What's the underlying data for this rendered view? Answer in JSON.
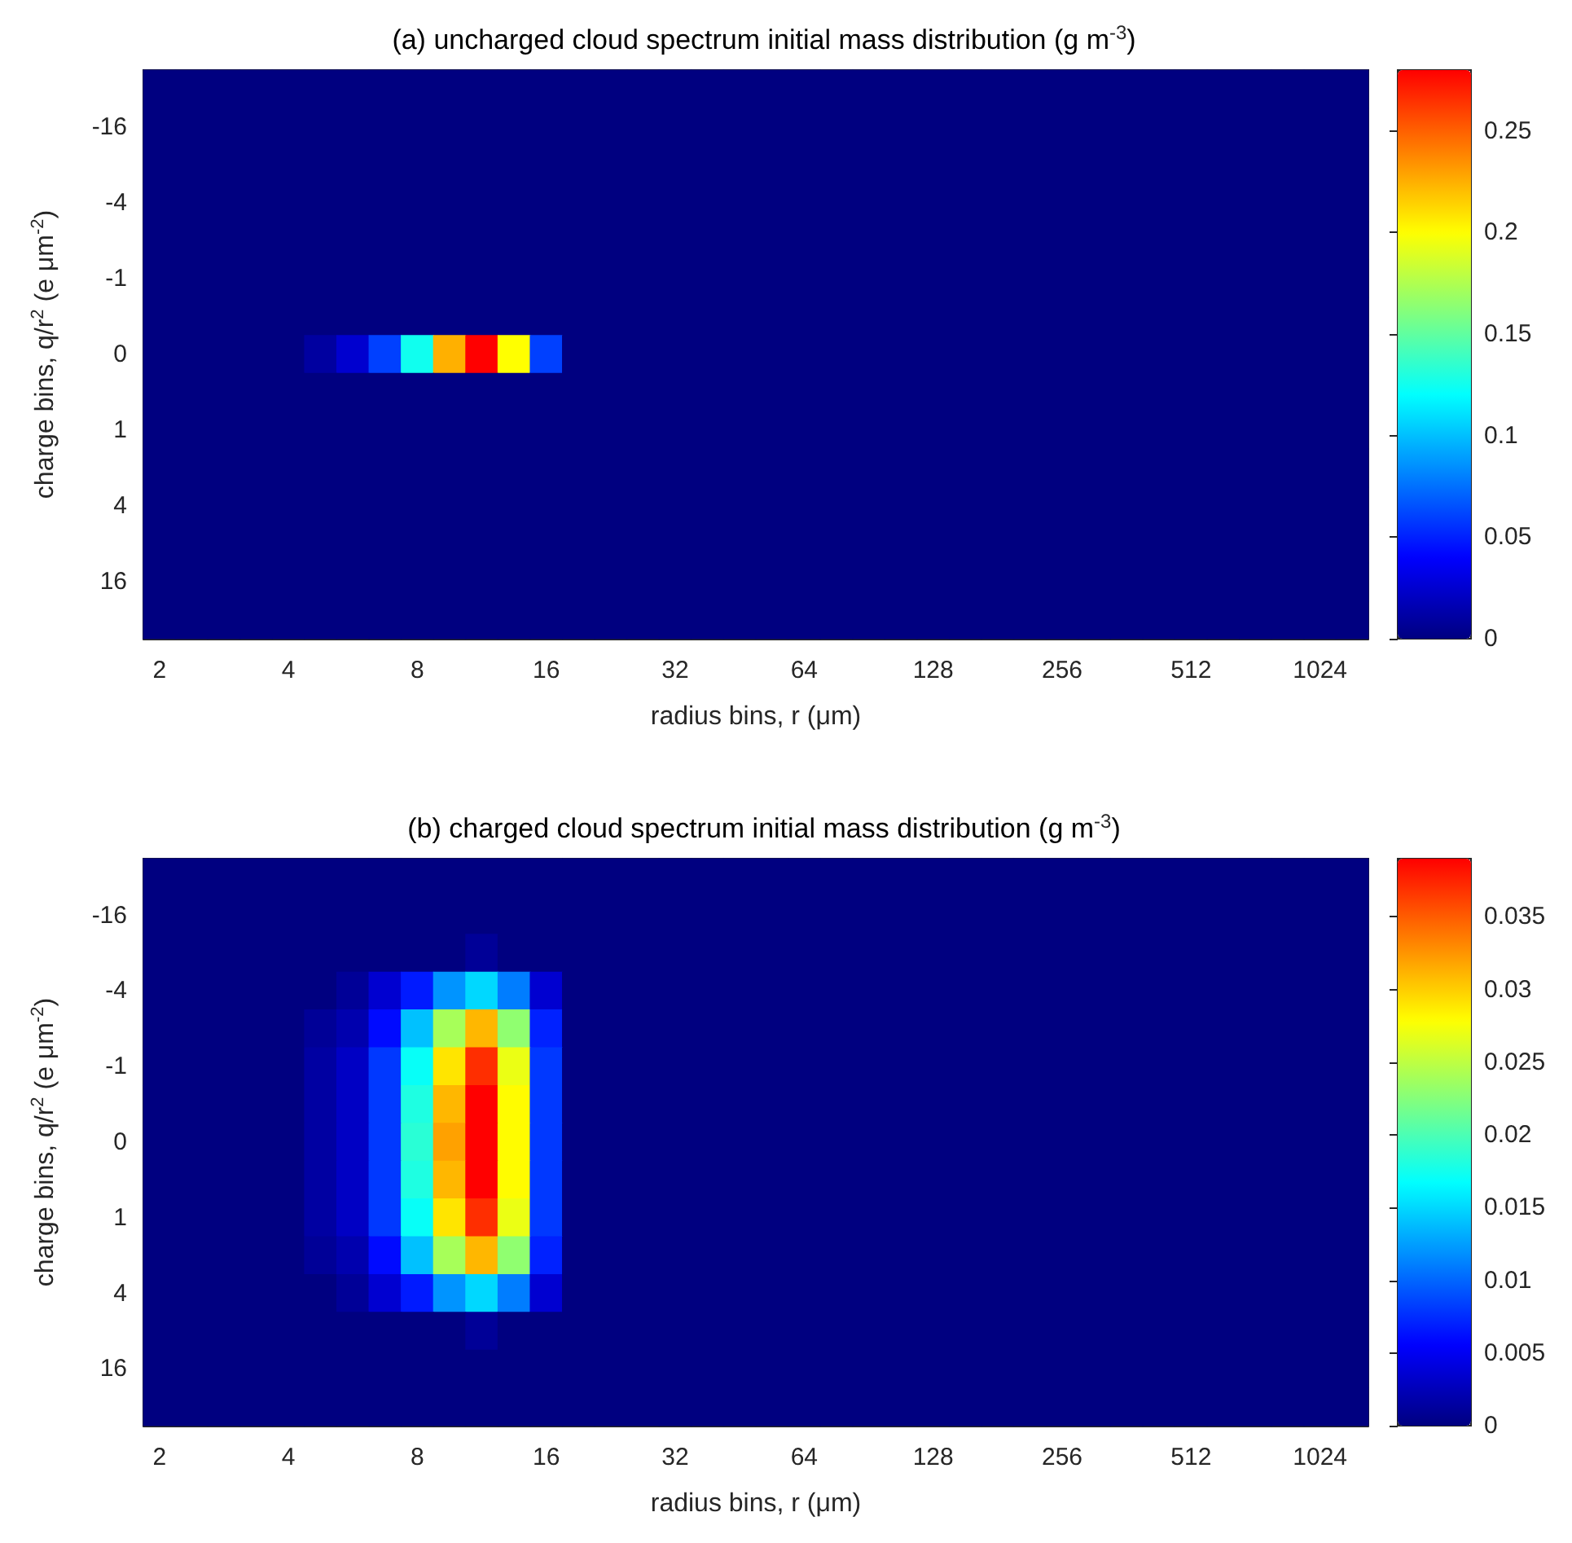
{
  "chart_data": [
    {
      "type": "heatmap",
      "title": "(a) uncharged cloud spectrum initial mass distribution (g m$^{-3}$)",
      "xlabel": "radius bins, r (μm)",
      "ylabel": "charge bins, q/r$^{2}$ (e μm$^{-2}$)",
      "categories": [
        "2",
        null,
        null,
        null,
        "4",
        null,
        null,
        null,
        "8",
        null,
        null,
        null,
        "16",
        null,
        null,
        null,
        "32",
        null,
        null,
        null,
        "64",
        null,
        null,
        null,
        "128",
        null,
        null,
        null,
        "256",
        null,
        null,
        null,
        "512",
        null,
        null,
        null,
        "1024",
        null
      ],
      "y_categories": [
        null,
        "-16",
        null,
        "-4",
        null,
        "-1",
        null,
        "0",
        null,
        "1",
        null,
        "4",
        null,
        "16",
        null
      ],
      "cells": [
        [
          0,
          0,
          0,
          0,
          0,
          0,
          0,
          0,
          0,
          0,
          0,
          0,
          0,
          0,
          0,
          0,
          0,
          0,
          0,
          0,
          0,
          0,
          0,
          0,
          0,
          0,
          0,
          0,
          0,
          0,
          0,
          0,
          0,
          0,
          0,
          0,
          0,
          0
        ],
        [
          0,
          0,
          0,
          0,
          0,
          0,
          0,
          0,
          0,
          0,
          0,
          0,
          0,
          0,
          0,
          0,
          0,
          0,
          0,
          0,
          0,
          0,
          0,
          0,
          0,
          0,
          0,
          0,
          0,
          0,
          0,
          0,
          0,
          0,
          0,
          0,
          0,
          0
        ],
        [
          0,
          0,
          0,
          0,
          0,
          0,
          0,
          0,
          0,
          0,
          0,
          0,
          0,
          0,
          0,
          0,
          0,
          0,
          0,
          0,
          0,
          0,
          0,
          0,
          0,
          0,
          0,
          0,
          0,
          0,
          0,
          0,
          0,
          0,
          0,
          0,
          0,
          0
        ],
        [
          0,
          0,
          0,
          0,
          0,
          0,
          0,
          0,
          0,
          0,
          0,
          0,
          0,
          0,
          0,
          0,
          0,
          0,
          0,
          0,
          0,
          0,
          0,
          0,
          0,
          0,
          0,
          0,
          0,
          0,
          0,
          0,
          0,
          0,
          0,
          0,
          0,
          0
        ],
        [
          0,
          0,
          0,
          0,
          0,
          0,
          0,
          0,
          0,
          0,
          0,
          0,
          0,
          0,
          0,
          0,
          0,
          0,
          0,
          0,
          0,
          0,
          0,
          0,
          0,
          0,
          0,
          0,
          0,
          0,
          0,
          0,
          0,
          0,
          0,
          0,
          0,
          0
        ],
        [
          0,
          0,
          0,
          0,
          0,
          0,
          0,
          0,
          0,
          0,
          0,
          0,
          0,
          0,
          0,
          0,
          0,
          0,
          0,
          0,
          0,
          0,
          0,
          0,
          0,
          0,
          0,
          0,
          0,
          0,
          0,
          0,
          0,
          0,
          0,
          0,
          0,
          0
        ],
        [
          0,
          0,
          0,
          0,
          0,
          0,
          0,
          0,
          0,
          0,
          0,
          0,
          0,
          0,
          0,
          0,
          0,
          0,
          0,
          0,
          0,
          0,
          0,
          0,
          0,
          0,
          0,
          0,
          0,
          0,
          0,
          0,
          0,
          0,
          0,
          0,
          0,
          0
        ],
        [
          0,
          0,
          0,
          0,
          0,
          0.01,
          0.025,
          0.06,
          0.125,
          0.225,
          0.28,
          0.2,
          0.06,
          0,
          0,
          0,
          0,
          0,
          0,
          0,
          0,
          0,
          0,
          0,
          0,
          0,
          0,
          0,
          0,
          0,
          0,
          0,
          0,
          0,
          0,
          0,
          0,
          0
        ],
        [
          0,
          0,
          0,
          0,
          0,
          0,
          0,
          0,
          0,
          0,
          0,
          0,
          0,
          0,
          0,
          0,
          0,
          0,
          0,
          0,
          0,
          0,
          0,
          0,
          0,
          0,
          0,
          0,
          0,
          0,
          0,
          0,
          0,
          0,
          0,
          0,
          0,
          0
        ],
        [
          0,
          0,
          0,
          0,
          0,
          0,
          0,
          0,
          0,
          0,
          0,
          0,
          0,
          0,
          0,
          0,
          0,
          0,
          0,
          0,
          0,
          0,
          0,
          0,
          0,
          0,
          0,
          0,
          0,
          0,
          0,
          0,
          0,
          0,
          0,
          0,
          0,
          0
        ],
        [
          0,
          0,
          0,
          0,
          0,
          0,
          0,
          0,
          0,
          0,
          0,
          0,
          0,
          0,
          0,
          0,
          0,
          0,
          0,
          0,
          0,
          0,
          0,
          0,
          0,
          0,
          0,
          0,
          0,
          0,
          0,
          0,
          0,
          0,
          0,
          0,
          0,
          0
        ],
        [
          0,
          0,
          0,
          0,
          0,
          0,
          0,
          0,
          0,
          0,
          0,
          0,
          0,
          0,
          0,
          0,
          0,
          0,
          0,
          0,
          0,
          0,
          0,
          0,
          0,
          0,
          0,
          0,
          0,
          0,
          0,
          0,
          0,
          0,
          0,
          0,
          0,
          0
        ],
        [
          0,
          0,
          0,
          0,
          0,
          0,
          0,
          0,
          0,
          0,
          0,
          0,
          0,
          0,
          0,
          0,
          0,
          0,
          0,
          0,
          0,
          0,
          0,
          0,
          0,
          0,
          0,
          0,
          0,
          0,
          0,
          0,
          0,
          0,
          0,
          0,
          0,
          0
        ],
        [
          0,
          0,
          0,
          0,
          0,
          0,
          0,
          0,
          0,
          0,
          0,
          0,
          0,
          0,
          0,
          0,
          0,
          0,
          0,
          0,
          0,
          0,
          0,
          0,
          0,
          0,
          0,
          0,
          0,
          0,
          0,
          0,
          0,
          0,
          0,
          0,
          0,
          0
        ],
        [
          0,
          0,
          0,
          0,
          0,
          0,
          0,
          0,
          0,
          0,
          0,
          0,
          0,
          0,
          0,
          0,
          0,
          0,
          0,
          0,
          0,
          0,
          0,
          0,
          0,
          0,
          0,
          0,
          0,
          0,
          0,
          0,
          0,
          0,
          0,
          0,
          0,
          0
        ]
      ],
      "clim": [
        0,
        0.28
      ],
      "cticks": [
        0,
        0.05,
        0.1,
        0.15,
        0.2,
        0.25
      ]
    },
    {
      "type": "heatmap",
      "title": "(b) charged cloud spectrum initial mass distribution (g m$^{-3}$)",
      "xlabel": "radius bins, r (μm)",
      "ylabel": "charge bins, q/r$^{2}$ (e μm$^{-2}$)",
      "categories": [
        "2",
        null,
        null,
        null,
        "4",
        null,
        null,
        null,
        "8",
        null,
        null,
        null,
        "16",
        null,
        null,
        null,
        "32",
        null,
        null,
        null,
        "64",
        null,
        null,
        null,
        "128",
        null,
        null,
        null,
        "256",
        null,
        null,
        null,
        "512",
        null,
        null,
        null,
        "1024",
        null
      ],
      "y_categories": [
        null,
        "-16",
        null,
        "-4",
        null,
        "-1",
        null,
        "0",
        null,
        "1",
        null,
        "4",
        null,
        "16",
        null
      ],
      "cells": [
        [
          0,
          0,
          0,
          0,
          0,
          0,
          0,
          0,
          0,
          0,
          0,
          0,
          0,
          0,
          0,
          0,
          0,
          0,
          0,
          0,
          0,
          0,
          0,
          0,
          0,
          0,
          0,
          0,
          0,
          0,
          0,
          0,
          0,
          0,
          0,
          0,
          0,
          0
        ],
        [
          0,
          0,
          0,
          0,
          0,
          0,
          0,
          0,
          0,
          0,
          0,
          0,
          0,
          0,
          0,
          0,
          0,
          0,
          0,
          0,
          0,
          0,
          0,
          0,
          0,
          0,
          0,
          0,
          0,
          0,
          0,
          0,
          0,
          0,
          0,
          0,
          0,
          0
        ],
        [
          0,
          0,
          0,
          0,
          0,
          0,
          0,
          0,
          0,
          0,
          0.001,
          0,
          0,
          0,
          0,
          0,
          0,
          0,
          0,
          0,
          0,
          0,
          0,
          0,
          0,
          0,
          0,
          0,
          0,
          0,
          0,
          0,
          0,
          0,
          0,
          0,
          0,
          0
        ],
        [
          0,
          0,
          0,
          0,
          0,
          0,
          0.001,
          0.0035,
          0.0067,
          0.012,
          0.015,
          0.011,
          0.0035,
          0,
          0,
          0,
          0,
          0,
          0,
          0,
          0,
          0,
          0,
          0,
          0,
          0,
          0,
          0,
          0,
          0,
          0,
          0,
          0,
          0,
          0,
          0,
          0,
          0
        ],
        [
          0,
          0,
          0,
          0,
          0,
          0.001,
          0.002,
          0.006,
          0.014,
          0.024,
          0.031,
          0.023,
          0.007,
          0,
          0,
          0,
          0,
          0,
          0,
          0,
          0,
          0,
          0,
          0,
          0,
          0,
          0,
          0,
          0,
          0,
          0,
          0,
          0,
          0,
          0,
          0,
          0,
          0
        ],
        [
          0,
          0,
          0,
          0,
          0,
          0.0015,
          0.003,
          0.008,
          0.017,
          0.029,
          0.037,
          0.027,
          0.008,
          0,
          0,
          0,
          0,
          0,
          0,
          0,
          0,
          0,
          0,
          0,
          0,
          0,
          0,
          0,
          0,
          0,
          0,
          0,
          0,
          0,
          0,
          0,
          0,
          0
        ],
        [
          0,
          0,
          0,
          0,
          0,
          0.0015,
          0.003,
          0.008,
          0.018,
          0.031,
          0.039,
          0.028,
          0.008,
          0,
          0,
          0,
          0,
          0,
          0,
          0,
          0,
          0,
          0,
          0,
          0,
          0,
          0,
          0,
          0,
          0,
          0,
          0,
          0,
          0,
          0,
          0,
          0,
          0
        ],
        [
          0,
          0,
          0,
          0,
          0,
          0.0015,
          0.003,
          0.008,
          0.0185,
          0.032,
          0.039,
          0.028,
          0.008,
          0,
          0,
          0,
          0,
          0,
          0,
          0,
          0,
          0,
          0,
          0,
          0,
          0,
          0,
          0,
          0,
          0,
          0,
          0,
          0,
          0,
          0,
          0,
          0,
          0
        ],
        [
          0,
          0,
          0,
          0,
          0,
          0.0015,
          0.003,
          0.008,
          0.018,
          0.031,
          0.039,
          0.028,
          0.008,
          0,
          0,
          0,
          0,
          0,
          0,
          0,
          0,
          0,
          0,
          0,
          0,
          0,
          0,
          0,
          0,
          0,
          0,
          0,
          0,
          0,
          0,
          0,
          0,
          0
        ],
        [
          0,
          0,
          0,
          0,
          0,
          0.0015,
          0.003,
          0.008,
          0.017,
          0.029,
          0.037,
          0.027,
          0.008,
          0,
          0,
          0,
          0,
          0,
          0,
          0,
          0,
          0,
          0,
          0,
          0,
          0,
          0,
          0,
          0,
          0,
          0,
          0,
          0,
          0,
          0,
          0,
          0,
          0
        ],
        [
          0,
          0,
          0,
          0,
          0,
          0.001,
          0.002,
          0.006,
          0.014,
          0.024,
          0.031,
          0.023,
          0.007,
          0,
          0,
          0,
          0,
          0,
          0,
          0,
          0,
          0,
          0,
          0,
          0,
          0,
          0,
          0,
          0,
          0,
          0,
          0,
          0,
          0,
          0,
          0,
          0,
          0
        ],
        [
          0,
          0,
          0,
          0,
          0,
          0,
          0.001,
          0.0035,
          0.0067,
          0.012,
          0.015,
          0.011,
          0.0035,
          0,
          0,
          0,
          0,
          0,
          0,
          0,
          0,
          0,
          0,
          0,
          0,
          0,
          0,
          0,
          0,
          0,
          0,
          0,
          0,
          0,
          0,
          0,
          0,
          0
        ],
        [
          0,
          0,
          0,
          0,
          0,
          0,
          0,
          0,
          0,
          0,
          0.001,
          0,
          0,
          0,
          0,
          0,
          0,
          0,
          0,
          0,
          0,
          0,
          0,
          0,
          0,
          0,
          0,
          0,
          0,
          0,
          0,
          0,
          0,
          0,
          0,
          0,
          0,
          0
        ],
        [
          0,
          0,
          0,
          0,
          0,
          0,
          0,
          0,
          0,
          0,
          0,
          0,
          0,
          0,
          0,
          0,
          0,
          0,
          0,
          0,
          0,
          0,
          0,
          0,
          0,
          0,
          0,
          0,
          0,
          0,
          0,
          0,
          0,
          0,
          0,
          0,
          0,
          0
        ],
        [
          0,
          0,
          0,
          0,
          0,
          0,
          0,
          0,
          0,
          0,
          0,
          0,
          0,
          0,
          0,
          0,
          0,
          0,
          0,
          0,
          0,
          0,
          0,
          0,
          0,
          0,
          0,
          0,
          0,
          0,
          0,
          0,
          0,
          0,
          0,
          0,
          0,
          0
        ]
      ],
      "clim": [
        0,
        0.039
      ],
      "cticks": [
        0,
        0.005,
        0.01,
        0.015,
        0.02,
        0.025,
        0.03,
        0.035
      ]
    }
  ]
}
